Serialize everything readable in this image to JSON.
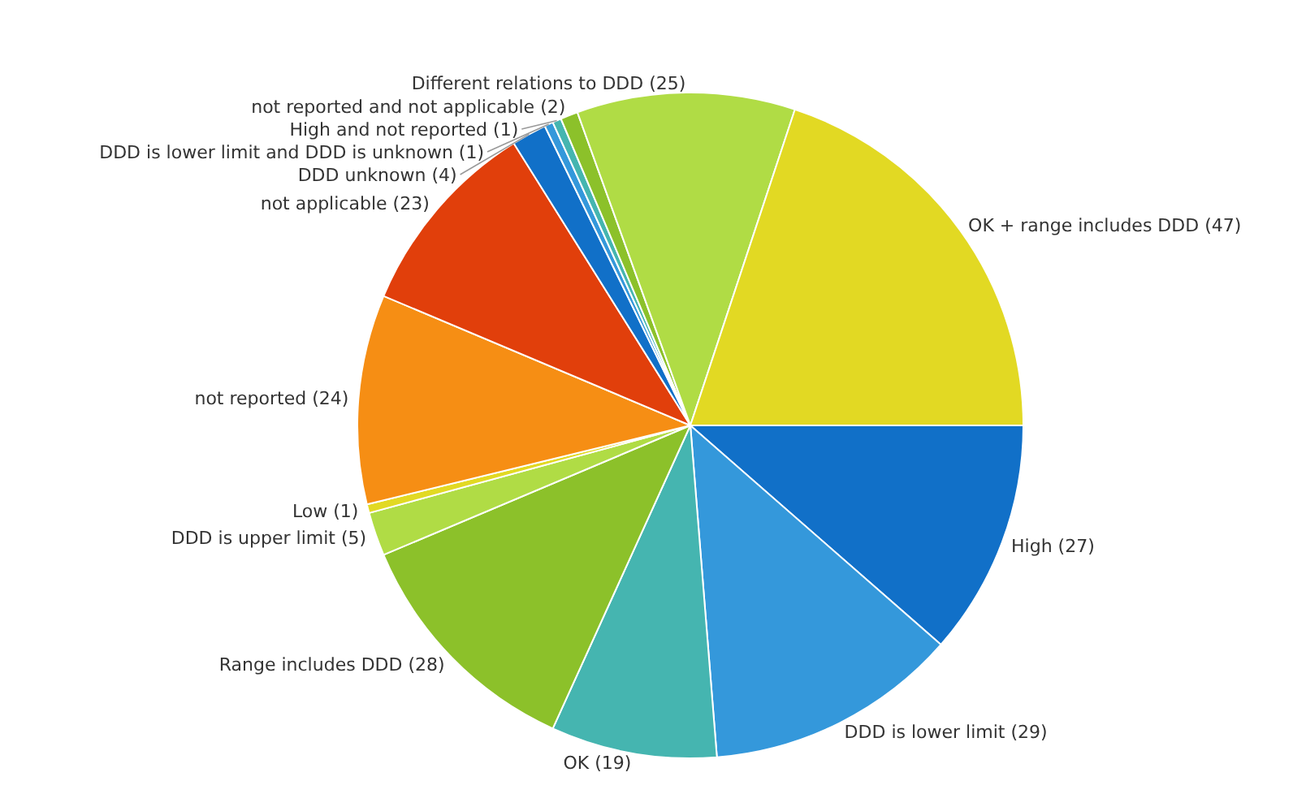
{
  "chart_data": {
    "type": "pie",
    "categories": [
      "High",
      "DDD is lower limit",
      "OK",
      "Range includes DDD",
      "DDD is upper limit",
      "Low",
      "not reported",
      "not applicable",
      "DDD unknown",
      "DDD is lower limit and DDD is unknown",
      "High and not reported",
      "not reported and not applicable",
      "Different relations to DDD",
      "OK + range includes DDD"
    ],
    "values": [
      27,
      29,
      19,
      28,
      5,
      1,
      24,
      23,
      4,
      1,
      1,
      2,
      25,
      47
    ],
    "value_labels": [
      "(27)",
      "(29)",
      "(19)",
      "(28)",
      "(5)",
      "(1)",
      "(24)",
      "(23)",
      "(4)",
      "(1)",
      "(1)",
      "(2)",
      "(25)",
      "(47)"
    ],
    "colors": [
      "#1170c8",
      "#3498db",
      "#45b5b0",
      "#8cc12a",
      "#b0dc45",
      "#e2d923",
      "#f68e14",
      "#e13f0b",
      "#1170c8",
      "#3498db",
      "#45b5b0",
      "#8cc12a",
      "#b0dc45",
      "#e2d923"
    ]
  }
}
